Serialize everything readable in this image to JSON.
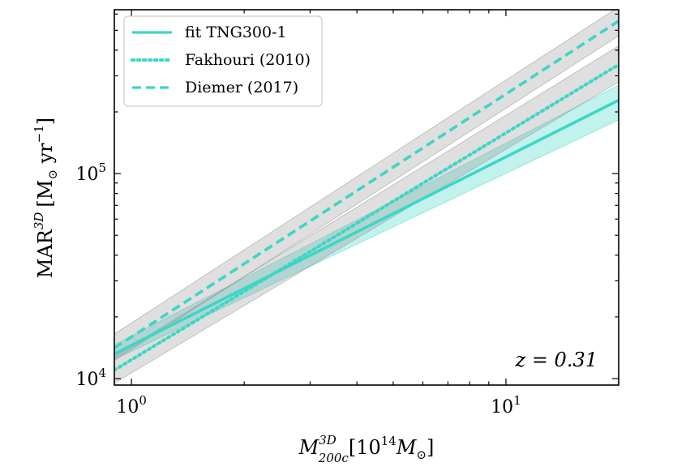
{
  "chart_data": {
    "type": "line",
    "xlabel_main": "M",
    "xlabel_sup": "3D",
    "xlabel_sub": "200c",
    "xlabel_units": "[10",
    "xlabel_units_sup": "14",
    "xlabel_units_end": "M",
    "xlabel_sun": "⊙",
    "xlabel_close": "]",
    "ylabel_main": "MAR",
    "ylabel_sup": "3D",
    "ylabel_units_open": "[M",
    "ylabel_sun": "⊙",
    "ylabel_units_mid": " yr",
    "ylabel_units_sup": "−1",
    "ylabel_units_close": "]",
    "x_scale": "log",
    "y_scale": "log",
    "xlim": [
      0.9,
      20
    ],
    "ylim": [
      9300,
      630000
    ],
    "x_ticks": [
      {
        "value": 1,
        "base": "10",
        "exp": "0"
      },
      {
        "value": 10,
        "base": "10",
        "exp": "1"
      }
    ],
    "y_ticks": [
      {
        "value": 10000,
        "base": "10",
        "exp": "4"
      },
      {
        "value": 100000,
        "base": "10",
        "exp": "5"
      }
    ],
    "annotation": "z = 0.31",
    "legend_position": "top-left",
    "colors": {
      "series": "#3dd6c6",
      "band_main": "#3dd6c6",
      "band_ref": "#8c8c8c"
    },
    "series": [
      {
        "name": "fit TNG300-1",
        "style": "solid",
        "x": [
          0.9,
          20
        ],
        "y": [
          13200,
          228000
        ],
        "band_lower": [
          12400,
          183000
        ],
        "band_upper": [
          14600,
          270000
        ],
        "band_color": "band_main"
      },
      {
        "name": "Fakhouri (2010)",
        "style": "dotted",
        "x": [
          0.9,
          20
        ],
        "y": [
          11000,
          340000
        ],
        "band_lower": [
          9500,
          280000
        ],
        "band_upper": [
          12800,
          420000
        ],
        "band_color": "band_ref"
      },
      {
        "name": "Diemer (2017)",
        "style": "dashed",
        "x": [
          0.9,
          20
        ],
        "y": [
          14100,
          555000
        ],
        "band_lower": [
          12300,
          470000
        ],
        "band_upper": [
          16500,
          650000
        ],
        "band_color": "band_ref"
      }
    ]
  }
}
